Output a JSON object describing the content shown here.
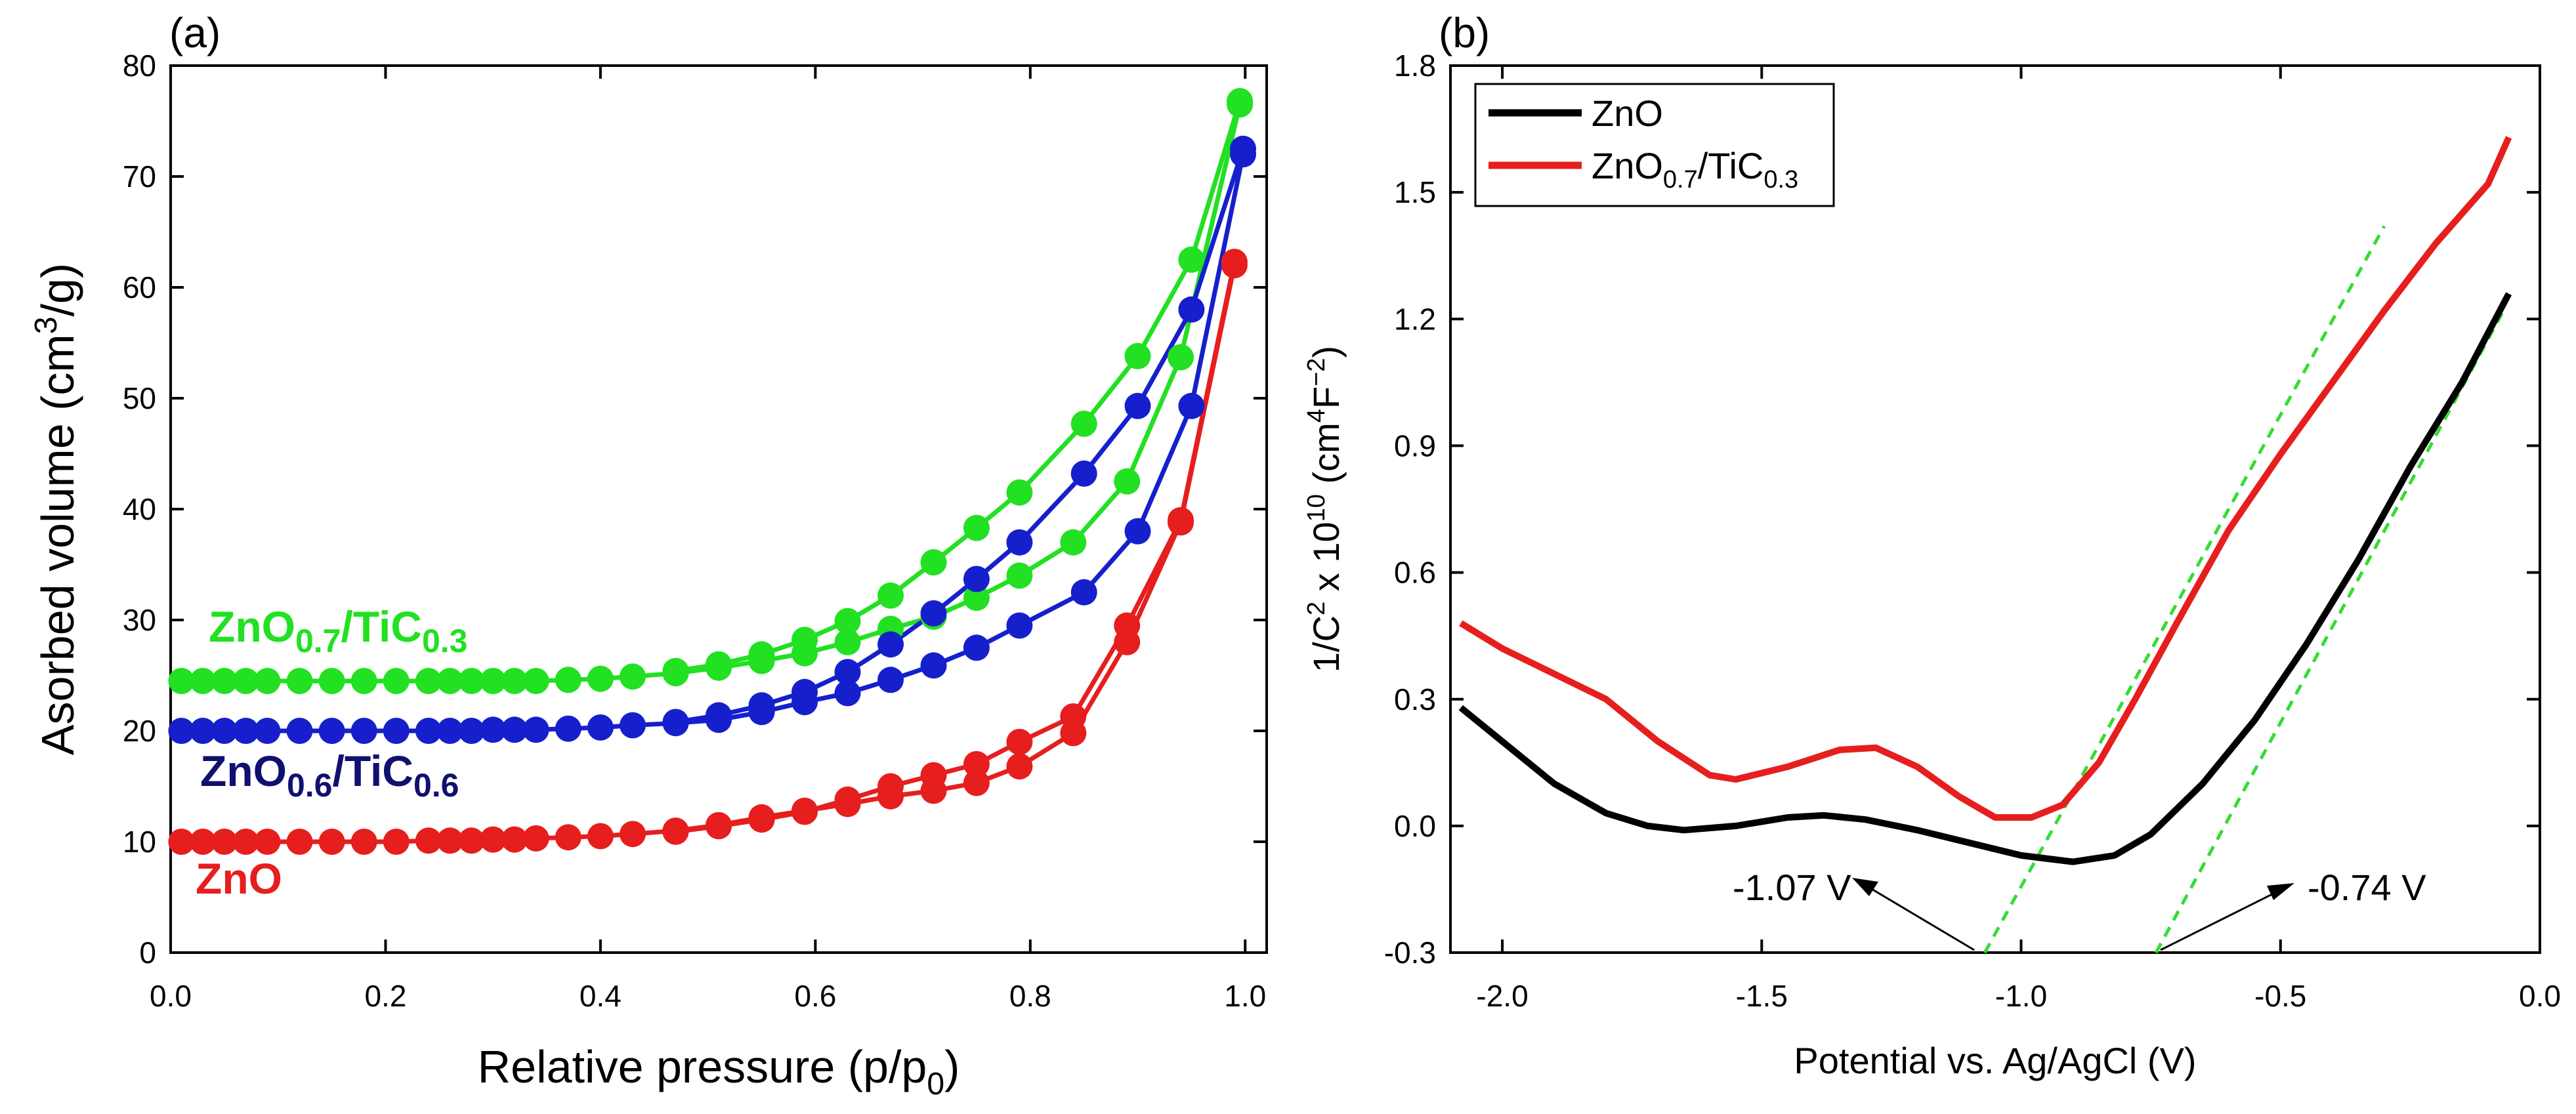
{
  "chart_data": [
    {
      "type": "line",
      "panel_label": "(a)",
      "xlabel": "Relative pressure (p/p",
      "xlabel_sub": "0",
      "xlabel_end": ")",
      "ylabel": "Asorbed volume (cm",
      "ylabel_sup": "3",
      "ylabel_end": "/g)",
      "xlim": [
        0,
        1.02
      ],
      "ylim": [
        0,
        80
      ],
      "xticks": [
        "0.0",
        "0.2",
        "0.4",
        "0.6",
        "0.8",
        "1.0"
      ],
      "xtick_values": [
        0,
        0.2,
        0.4,
        0.6,
        0.8,
        1.0
      ],
      "yticks": [
        "0",
        "10",
        "20",
        "30",
        "40",
        "50",
        "60",
        "70",
        "80"
      ],
      "ytick_values": [
        0,
        10,
        20,
        30,
        40,
        50,
        60,
        70,
        80
      ],
      "series": [
        {
          "name": "ZnO0.7/TiC0.3",
          "label_main": "ZnO",
          "label_sub1": "0.7",
          "label_mid": "/TiC",
          "label_sub2": "0.3",
          "color": "#22e022",
          "adsorption": [
            [
              0.01,
              24.5
            ],
            [
              0.03,
              24.5
            ],
            [
              0.05,
              24.5
            ],
            [
              0.07,
              24.5
            ],
            [
              0.09,
              24.5
            ],
            [
              0.12,
              24.5
            ],
            [
              0.15,
              24.5
            ],
            [
              0.18,
              24.5
            ],
            [
              0.21,
              24.5
            ],
            [
              0.24,
              24.5
            ],
            [
              0.26,
              24.5
            ],
            [
              0.28,
              24.5
            ],
            [
              0.3,
              24.5
            ],
            [
              0.32,
              24.5
            ],
            [
              0.34,
              24.5
            ],
            [
              0.37,
              24.6
            ],
            [
              0.4,
              24.7
            ],
            [
              0.43,
              24.9
            ],
            [
              0.47,
              25.2
            ],
            [
              0.51,
              25.7
            ],
            [
              0.55,
              26.3
            ],
            [
              0.59,
              27.0
            ],
            [
              0.63,
              28.0
            ],
            [
              0.67,
              29.2
            ],
            [
              0.71,
              30.3
            ],
            [
              0.75,
              32.0
            ],
            [
              0.79,
              34.0
            ],
            [
              0.84,
              37.0
            ],
            [
              0.89,
              42.5
            ],
            [
              0.94,
              53.7
            ],
            [
              0.995,
              76.5
            ]
          ],
          "desorption": [
            [
              0.995,
              76.8
            ],
            [
              0.95,
              62.5
            ],
            [
              0.9,
              53.8
            ],
            [
              0.85,
              47.7
            ],
            [
              0.79,
              41.5
            ],
            [
              0.75,
              38.3
            ],
            [
              0.71,
              35.2
            ],
            [
              0.67,
              32.2
            ],
            [
              0.63,
              29.9
            ],
            [
              0.59,
              28.2
            ],
            [
              0.55,
              26.9
            ],
            [
              0.51,
              26.0
            ],
            [
              0.47,
              25.4
            ]
          ]
        },
        {
          "name": "ZnO0.6/TiC0.6",
          "label_main": "ZnO",
          "label_sub1": "0.6",
          "label_mid": "/TiC",
          "label_sub2": "0.6",
          "color": "#1520cc",
          "label_color": "#101070",
          "adsorption": [
            [
              0.01,
              20.0
            ],
            [
              0.03,
              20.0
            ],
            [
              0.05,
              20.0
            ],
            [
              0.07,
              20.0
            ],
            [
              0.09,
              20.0
            ],
            [
              0.12,
              20.0
            ],
            [
              0.15,
              20.0
            ],
            [
              0.18,
              20.0
            ],
            [
              0.21,
              20.0
            ],
            [
              0.24,
              20.0
            ],
            [
              0.26,
              20.0
            ],
            [
              0.28,
              20.0
            ],
            [
              0.3,
              20.1
            ],
            [
              0.32,
              20.1
            ],
            [
              0.34,
              20.1
            ],
            [
              0.37,
              20.2
            ],
            [
              0.4,
              20.3
            ],
            [
              0.43,
              20.5
            ],
            [
              0.47,
              20.7
            ],
            [
              0.51,
              21.0
            ],
            [
              0.55,
              21.7
            ],
            [
              0.59,
              22.6
            ],
            [
              0.63,
              23.4
            ],
            [
              0.67,
              24.6
            ],
            [
              0.71,
              25.9
            ],
            [
              0.75,
              27.5
            ],
            [
              0.79,
              29.5
            ],
            [
              0.85,
              32.5
            ],
            [
              0.9,
              38.0
            ],
            [
              0.95,
              49.3
            ],
            [
              0.998,
              72.0
            ]
          ],
          "desorption": [
            [
              0.998,
              72.5
            ],
            [
              0.95,
              58.0
            ],
            [
              0.9,
              49.3
            ],
            [
              0.85,
              43.2
            ],
            [
              0.79,
              37.0
            ],
            [
              0.75,
              33.7
            ],
            [
              0.71,
              30.6
            ],
            [
              0.67,
              27.8
            ],
            [
              0.63,
              25.3
            ],
            [
              0.59,
              23.5
            ],
            [
              0.55,
              22.3
            ],
            [
              0.51,
              21.4
            ],
            [
              0.47,
              20.8
            ]
          ]
        },
        {
          "name": "ZnO",
          "label_main": "ZnO",
          "color": "#e61e1e",
          "adsorption": [
            [
              0.01,
              10.0
            ],
            [
              0.03,
              10.0
            ],
            [
              0.05,
              10.0
            ],
            [
              0.07,
              10.0
            ],
            [
              0.09,
              10.0
            ],
            [
              0.12,
              10.0
            ],
            [
              0.15,
              10.0
            ],
            [
              0.18,
              10.0
            ],
            [
              0.21,
              10.0
            ],
            [
              0.24,
              10.1
            ],
            [
              0.26,
              10.1
            ],
            [
              0.28,
              10.1
            ],
            [
              0.3,
              10.2
            ],
            [
              0.32,
              10.2
            ],
            [
              0.34,
              10.3
            ],
            [
              0.37,
              10.4
            ],
            [
              0.4,
              10.5
            ],
            [
              0.43,
              10.7
            ],
            [
              0.47,
              11.0
            ],
            [
              0.51,
              11.5
            ],
            [
              0.55,
              12.2
            ],
            [
              0.59,
              12.8
            ],
            [
              0.63,
              13.4
            ],
            [
              0.67,
              14.1
            ],
            [
              0.71,
              14.6
            ],
            [
              0.75,
              15.3
            ],
            [
              0.79,
              16.8
            ],
            [
              0.84,
              19.8
            ],
            [
              0.89,
              28.0
            ],
            [
              0.94,
              38.8
            ],
            [
              0.99,
              62.0
            ]
          ],
          "desorption": [
            [
              0.99,
              62.3
            ],
            [
              0.94,
              39.0
            ],
            [
              0.89,
              29.5
            ],
            [
              0.84,
              21.3
            ],
            [
              0.79,
              19.0
            ],
            [
              0.75,
              17.0
            ],
            [
              0.71,
              16.0
            ],
            [
              0.67,
              15.0
            ],
            [
              0.63,
              13.8
            ],
            [
              0.59,
              12.7
            ],
            [
              0.55,
              12.0
            ],
            [
              0.51,
              11.4
            ],
            [
              0.47,
              10.9
            ]
          ]
        }
      ]
    },
    {
      "type": "line",
      "panel_label": "(b)",
      "xlabel": "Potential vs. Ag/AgCl (V)",
      "ylabel": "1/C",
      "ylabel_sup1": "2",
      "ylabel_mid": " x 10",
      "ylabel_sup2": "10",
      "ylabel_mid2": " (cm",
      "ylabel_sup3": "4",
      "ylabel_mid3": "F",
      "ylabel_sup4": "−2",
      "ylabel_end": ")",
      "xlim": [
        -2.1,
        0.0
      ],
      "ylim": [
        -0.3,
        1.8
      ],
      "xticks": [
        "-2.0",
        "-1.5",
        "-1.0",
        "-0.5",
        "0.0"
      ],
      "xtick_values": [
        -2.0,
        -1.5,
        -1.0,
        -0.5,
        0.0
      ],
      "yticks": [
        "-0.3",
        "0.0",
        "0.3",
        "0.6",
        "0.9",
        "1.2",
        "1.5",
        "1.8"
      ],
      "ytick_values": [
        -0.3,
        0.0,
        0.3,
        0.6,
        0.9,
        1.2,
        1.5,
        1.8
      ],
      "legend_position": "top-left",
      "series": [
        {
          "name": "ZnO",
          "label_main": "ZnO",
          "color": "#000000",
          "points": [
            [
              -2.08,
              0.28
            ],
            [
              -2.0,
              0.2
            ],
            [
              -1.9,
              0.1
            ],
            [
              -1.8,
              0.03
            ],
            [
              -1.72,
              0.0
            ],
            [
              -1.65,
              -0.01
            ],
            [
              -1.55,
              0.0
            ],
            [
              -1.45,
              0.02
            ],
            [
              -1.38,
              0.025
            ],
            [
              -1.3,
              0.015
            ],
            [
              -1.2,
              -0.01
            ],
            [
              -1.1,
              -0.04
            ],
            [
              -1.0,
              -0.07
            ],
            [
              -0.9,
              -0.085
            ],
            [
              -0.82,
              -0.07
            ],
            [
              -0.75,
              -0.02
            ],
            [
              -0.65,
              0.1
            ],
            [
              -0.55,
              0.25
            ],
            [
              -0.45,
              0.43
            ],
            [
              -0.35,
              0.63
            ],
            [
              -0.25,
              0.85
            ],
            [
              -0.15,
              1.05
            ],
            [
              -0.06,
              1.26
            ]
          ]
        },
        {
          "name": "ZnO0.7/TiC0.3",
          "label_main": "ZnO",
          "label_sub1": "0.7",
          "label_mid": "/TiC",
          "label_sub2": "0.3",
          "color": "#e61e1e",
          "points": [
            [
              -2.08,
              0.48
            ],
            [
              -2.0,
              0.42
            ],
            [
              -1.9,
              0.36
            ],
            [
              -1.8,
              0.3
            ],
            [
              -1.7,
              0.2
            ],
            [
              -1.6,
              0.12
            ],
            [
              -1.55,
              0.11
            ],
            [
              -1.45,
              0.14
            ],
            [
              -1.35,
              0.18
            ],
            [
              -1.28,
              0.185
            ],
            [
              -1.2,
              0.14
            ],
            [
              -1.12,
              0.07
            ],
            [
              -1.05,
              0.02
            ],
            [
              -0.98,
              0.02
            ],
            [
              -0.92,
              0.05
            ],
            [
              -0.85,
              0.15
            ],
            [
              -0.78,
              0.3
            ],
            [
              -0.7,
              0.48
            ],
            [
              -0.6,
              0.7
            ],
            [
              -0.5,
              0.88
            ],
            [
              -0.4,
              1.05
            ],
            [
              -0.3,
              1.22
            ],
            [
              -0.2,
              1.38
            ],
            [
              -0.1,
              1.52
            ],
            [
              -0.06,
              1.63
            ]
          ]
        }
      ],
      "fit_lines": [
        {
          "name": "ZnO0.7/TiC0.3 fit",
          "color": "#33dd33",
          "points": [
            [
              -1.07,
              -0.3
            ],
            [
              -0.3,
              1.42
            ]
          ]
        },
        {
          "name": "ZnO fit",
          "color": "#33dd33",
          "points": [
            [
              -0.74,
              -0.3
            ],
            [
              -0.07,
              1.22
            ]
          ]
        }
      ],
      "annotations": [
        {
          "text": "-1.07 V",
          "x": -1.07
        },
        {
          "text": "-0.74 V",
          "x": -0.74
        }
      ]
    }
  ]
}
